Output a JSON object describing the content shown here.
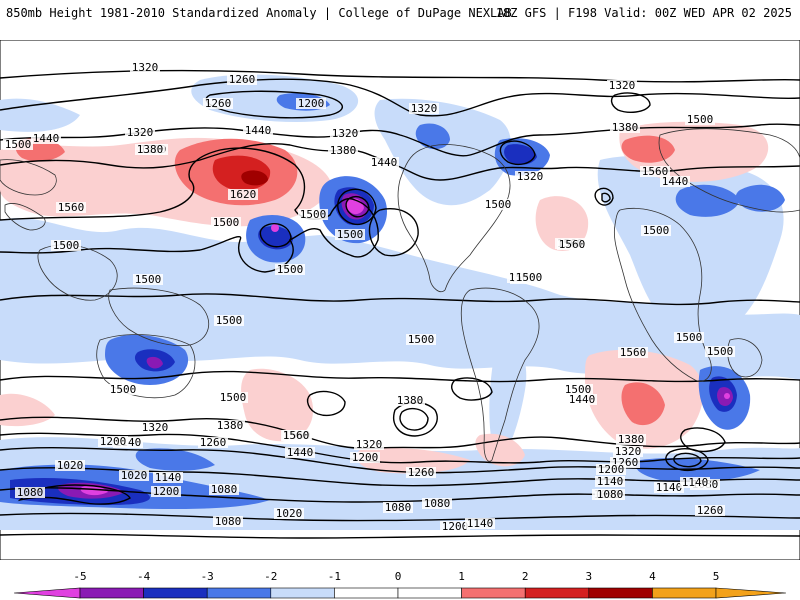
{
  "header": {
    "title_left": "850mb Height 1981-2010 Standardized Anomaly | College of DuPage NEXLAB",
    "title_right": "18Z GFS | F198 Valid: 00Z WED APR 02 2025"
  },
  "colors": {
    "anom_neg5": "#e040e0",
    "anom_neg4": "#8a1ab4",
    "anom_neg3": "#1a2fbf",
    "anom_neg2": "#4a78e8",
    "anom_neg1": "#c8dcfa",
    "anom_pos1": "#fbd0d0",
    "anom_pos2": "#f47070",
    "anom_pos3": "#d42020",
    "anom_pos4": "#a00000",
    "anom_pos5": "#f3a21a"
  },
  "contour_labels": [
    {
      "id": "c1",
      "text": "1320"
    },
    {
      "id": "c2",
      "text": "1260"
    },
    {
      "id": "c3",
      "text": "1200"
    },
    {
      "id": "c4",
      "text": "1260"
    },
    {
      "id": "c5",
      "text": "1320"
    },
    {
      "id": "c6",
      "text": "1320"
    },
    {
      "id": "c7",
      "text": "1440"
    },
    {
      "id": "c8",
      "text": "1380"
    },
    {
      "id": "c9",
      "text": "1440"
    },
    {
      "id": "c10",
      "text": "1500"
    },
    {
      "id": "c11",
      "text": "1620"
    },
    {
      "id": "c12",
      "text": "1560"
    },
    {
      "id": "c13",
      "text": "1500"
    },
    {
      "id": "c14",
      "text": "1500"
    },
    {
      "id": "c15",
      "text": "1500"
    },
    {
      "id": "c16",
      "text": "1560"
    },
    {
      "id": "c17",
      "text": "1500"
    },
    {
      "id": "c18",
      "text": "1500"
    },
    {
      "id": "c19",
      "text": "1500"
    },
    {
      "id": "c20",
      "text": "1500"
    },
    {
      "id": "c21",
      "text": "1500"
    },
    {
      "id": "c22",
      "text": "1500"
    },
    {
      "id": "c23",
      "text": "1440"
    },
    {
      "id": "c24",
      "text": "1320"
    },
    {
      "id": "c25",
      "text": "1380"
    },
    {
      "id": "c26",
      "text": "1320"
    },
    {
      "id": "c27",
      "text": "1500"
    },
    {
      "id": "c28",
      "text": "1560"
    },
    {
      "id": "c29",
      "text": "1320"
    },
    {
      "id": "c30",
      "text": "1380"
    },
    {
      "id": "c31",
      "text": "1500"
    },
    {
      "id": "c32",
      "text": "1560"
    },
    {
      "id": "c33",
      "text": "1440"
    },
    {
      "id": "c34",
      "text": "1500"
    },
    {
      "id": "c35",
      "text": "1500"
    },
    {
      "id": "c36",
      "text": "1500"
    },
    {
      "id": "c37",
      "text": "1500"
    },
    {
      "id": "c38",
      "text": "1560"
    },
    {
      "id": "c39",
      "text": "1500"
    },
    {
      "id": "c40",
      "text": "1500"
    },
    {
      "id": "c41",
      "text": "1500"
    },
    {
      "id": "c42",
      "text": "1380"
    },
    {
      "id": "c43",
      "text": "1500"
    },
    {
      "id": "c44",
      "text": "1440"
    },
    {
      "id": "c45",
      "text": "1560"
    },
    {
      "id": "c46",
      "text": "1380"
    },
    {
      "id": "c47",
      "text": "1320"
    },
    {
      "id": "c48",
      "text": "1260"
    },
    {
      "id": "c49",
      "text": "1200"
    },
    {
      "id": "c50",
      "text": "1140"
    },
    {
      "id": "c51",
      "text": "1080"
    },
    {
      "id": "c52",
      "text": "1140"
    },
    {
      "id": "c53",
      "text": "1080"
    },
    {
      "id": "c54",
      "text": "1260"
    },
    {
      "id": "c55",
      "text": "1320"
    },
    {
      "id": "c56",
      "text": "1380"
    },
    {
      "id": "c57",
      "text": "1200"
    },
    {
      "id": "c58",
      "text": "1140"
    },
    {
      "id": "c59",
      "text": "1260"
    },
    {
      "id": "c60",
      "text": "1440"
    },
    {
      "id": "c61",
      "text": "1560"
    },
    {
      "id": "c62",
      "text": "1320"
    },
    {
      "id": "c63",
      "text": "1200"
    },
    {
      "id": "c64",
      "text": "1020"
    },
    {
      "id": "c65",
      "text": "1020"
    },
    {
      "id": "c66",
      "text": "1080"
    },
    {
      "id": "c67",
      "text": "1200"
    },
    {
      "id": "c68",
      "text": "1140"
    },
    {
      "id": "c69",
      "text": "1080"
    },
    {
      "id": "c70",
      "text": "1020"
    },
    {
      "id": "c71",
      "text": "1080"
    },
    {
      "id": "c72",
      "text": "1080"
    },
    {
      "id": "c73",
      "text": "1080"
    },
    {
      "id": "c74",
      "text": "1200"
    },
    {
      "id": "c75",
      "text": "1140"
    },
    {
      "id": "c76",
      "text": "1260"
    },
    {
      "id": "c77",
      "text": "1140"
    },
    {
      "id": "c78",
      "text": "1080"
    },
    {
      "id": "c79",
      "text": "1500"
    }
  ],
  "colorbar": {
    "ticks": [
      "-5",
      "-4",
      "-3",
      "-2",
      "-1",
      "0",
      "1",
      "2",
      "3",
      "4",
      "5"
    ]
  }
}
